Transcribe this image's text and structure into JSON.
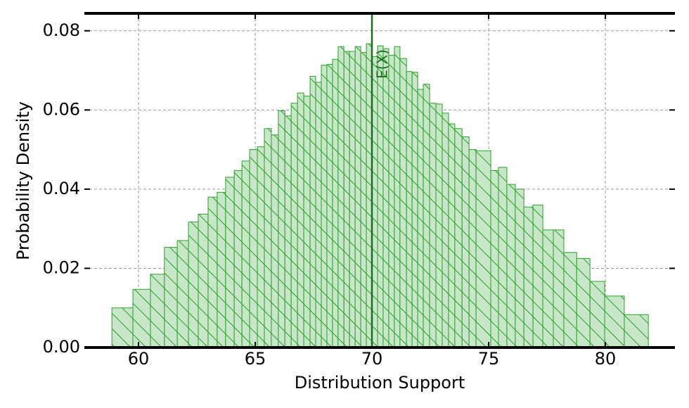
{
  "chart_data": {
    "type": "histogram",
    "xlabel": "Distribution Support",
    "ylabel": "Probability Density",
    "bins": [
      58.86,
      59.76,
      60.51,
      61.11,
      61.66,
      62.14,
      62.56,
      62.98,
      63.37,
      63.73,
      64.1,
      64.43,
      64.76,
      65.09,
      65.39,
      65.69,
      65.99,
      66.27,
      66.54,
      66.81,
      67.08,
      67.35,
      67.59,
      67.83,
      68.07,
      68.31,
      68.55,
      68.8,
      69.04,
      69.28,
      69.52,
      69.76,
      70.0,
      70.24,
      70.48,
      70.72,
      70.96,
      71.2,
      71.48,
      71.72,
      71.96,
      72.2,
      72.47,
      72.74,
      73.01,
      73.28,
      73.55,
      73.86,
      74.16,
      74.46,
      75.09,
      75.42,
      75.78,
      76.14,
      76.51,
      76.9,
      77.32,
      77.77,
      78.22,
      78.77,
      79.34,
      79.97,
      80.81,
      81.84
    ],
    "counts": [
      0.01,
      0.0147,
      0.0185,
      0.0253,
      0.027,
      0.0317,
      0.0337,
      0.038,
      0.0392,
      0.043,
      0.0447,
      0.0471,
      0.05,
      0.0507,
      0.0553,
      0.0537,
      0.0598,
      0.0585,
      0.0617,
      0.0643,
      0.0635,
      0.0685,
      0.067,
      0.0713,
      0.0715,
      0.0728,
      0.076,
      0.0748,
      0.0748,
      0.076,
      0.0745,
      0.0767,
      0.0735,
      0.0762,
      0.0755,
      0.0738,
      0.076,
      0.073,
      0.0697,
      0.0695,
      0.0652,
      0.0665,
      0.0617,
      0.0615,
      0.0592,
      0.0565,
      0.0553,
      0.0532,
      0.05,
      0.0497,
      0.0447,
      0.0455,
      0.0412,
      0.04,
      0.0355,
      0.036,
      0.0297,
      0.0297,
      0.024,
      0.0225,
      0.0167,
      0.013,
      0.0083
    ],
    "color": "#c8e6c8",
    "edgecolor": "#2ca02c",
    "vline": {
      "x": 70,
      "label": "E(X)",
      "color": "#1f6e1f"
    },
    "xlim": [
      57.68,
      82.98
    ],
    "ylim": [
      0,
      0.0844
    ],
    "xticks": [
      60,
      65,
      70,
      75,
      80
    ],
    "yticks": [
      {
        "value": 0,
        "label": "0.00"
      },
      {
        "value": 0.02,
        "label": "0.02"
      },
      {
        "value": 0.04,
        "label": "0.04"
      },
      {
        "value": 0.06,
        "label": "0.06"
      },
      {
        "value": 0.08,
        "label": "0.08"
      }
    ],
    "grid": true
  }
}
